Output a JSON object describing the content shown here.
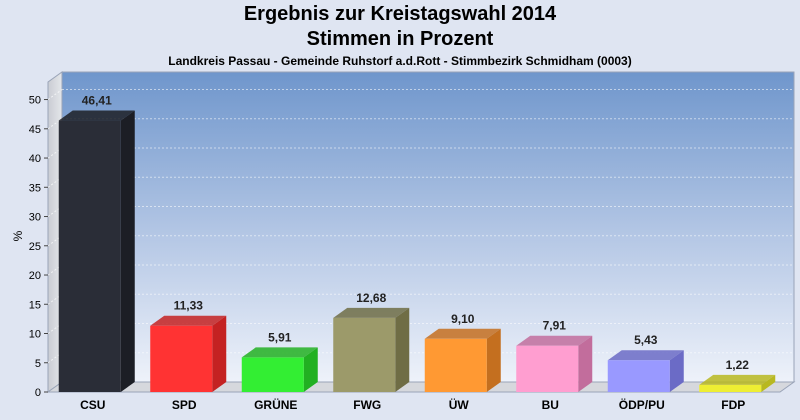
{
  "chart_data": {
    "type": "bar",
    "title": "Ergebnis zur Kreistagswahl 2014",
    "subtitle_line": "Stimmen in Prozent",
    "subtitle": "Landkreis Passau - Gemeinde Ruhstorf a.d.Rott - Stimmbezirk Schmidham (0003)",
    "ylabel": "%",
    "xlabel": "",
    "ylim": [
      0,
      53
    ],
    "yticks": [
      0,
      5,
      10,
      15,
      20,
      25,
      30,
      35,
      40,
      45,
      50
    ],
    "grid": true,
    "categories": [
      "CSU",
      "SPD",
      "GRÜNE",
      "FWG",
      "ÜW",
      "BU",
      "ÖDP/PU",
      "FDP"
    ],
    "values": [
      46.41,
      11.33,
      5.91,
      12.68,
      9.1,
      7.91,
      5.43,
      1.22
    ],
    "value_labels": [
      "46,41",
      "11,33",
      "5,91",
      "12,68",
      "9,10",
      "7,91",
      "5,43",
      "1,22"
    ],
    "colors": [
      "#2a2d37",
      "#ff3333",
      "#33ee33",
      "#9c9a6a",
      "#ff9933",
      "#ff9ed0",
      "#9999ff",
      "#eeee33"
    ],
    "colors_dark": [
      "#1c1e25",
      "#c42222",
      "#22b022",
      "#6f6d45",
      "#c46f1f",
      "#c26d9c",
      "#6b6bc6",
      "#b8b820"
    ]
  }
}
